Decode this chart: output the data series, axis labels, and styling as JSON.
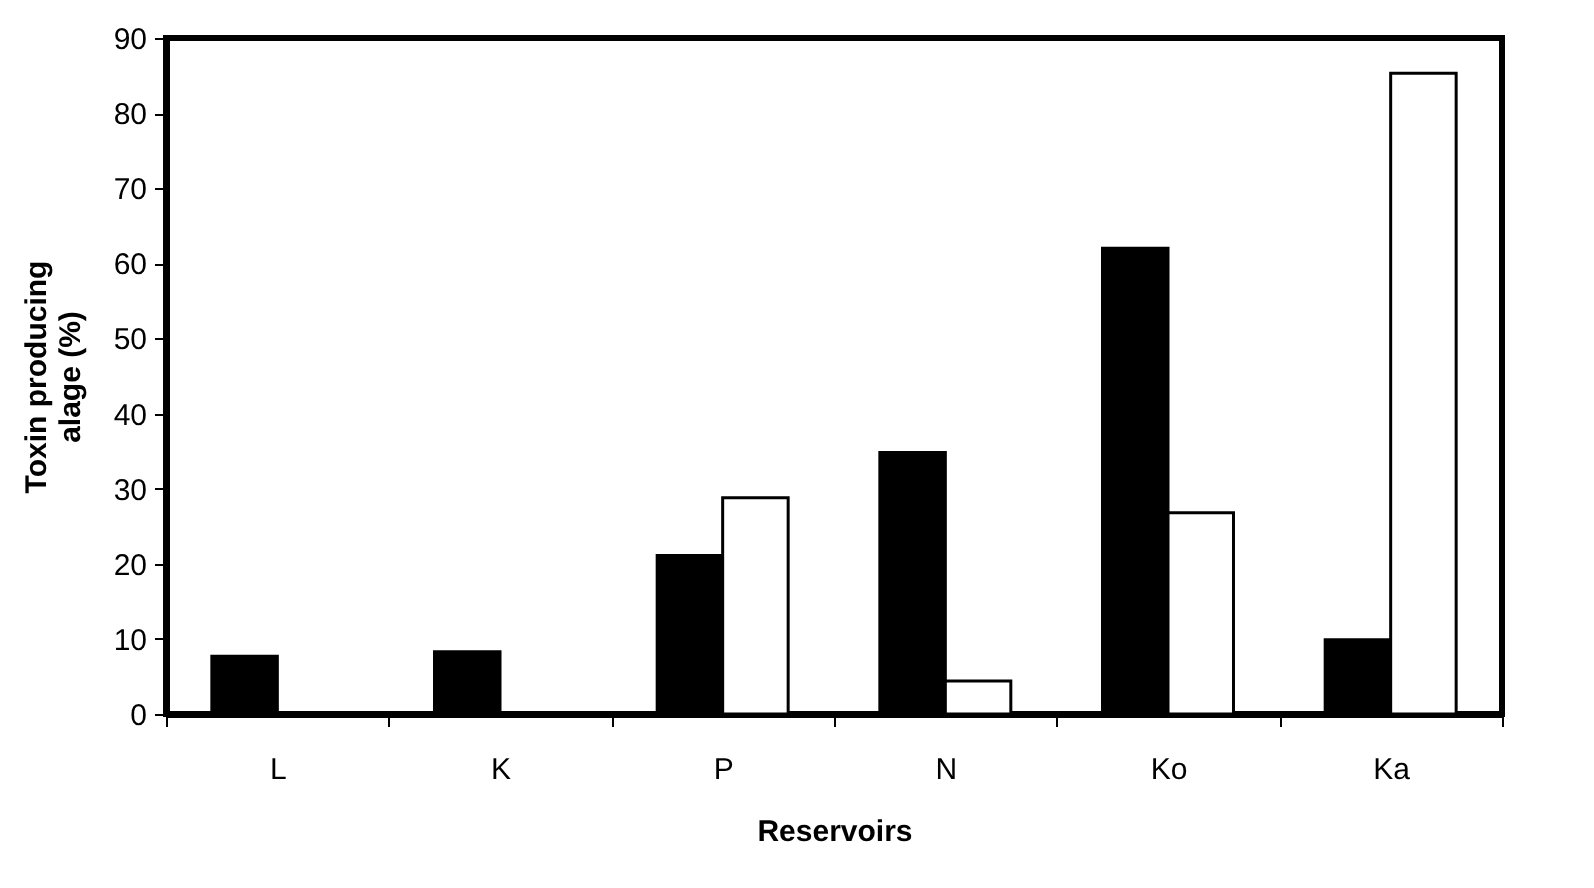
{
  "chart_data": {
    "type": "bar",
    "xlabel": "Reservoirs",
    "ylabel": "Toxin producing alage (%)",
    "categories": [
      "L",
      "K",
      "P",
      "N",
      "Ko",
      "Ka"
    ],
    "series": [
      {
        "color": "#000000",
        "values": [
          7.7,
          8.3,
          21.1,
          34.8,
          62,
          9.9
        ]
      },
      {
        "color": "#ffffff",
        "values": [
          null,
          null,
          28.8,
          4.4,
          26.8,
          85.3
        ]
      }
    ],
    "ylim": [
      0,
      90
    ],
    "yticks": [
      0,
      10,
      20,
      30,
      40,
      50,
      60,
      70,
      80,
      90
    ],
    "grid": false,
    "legend": false
  }
}
